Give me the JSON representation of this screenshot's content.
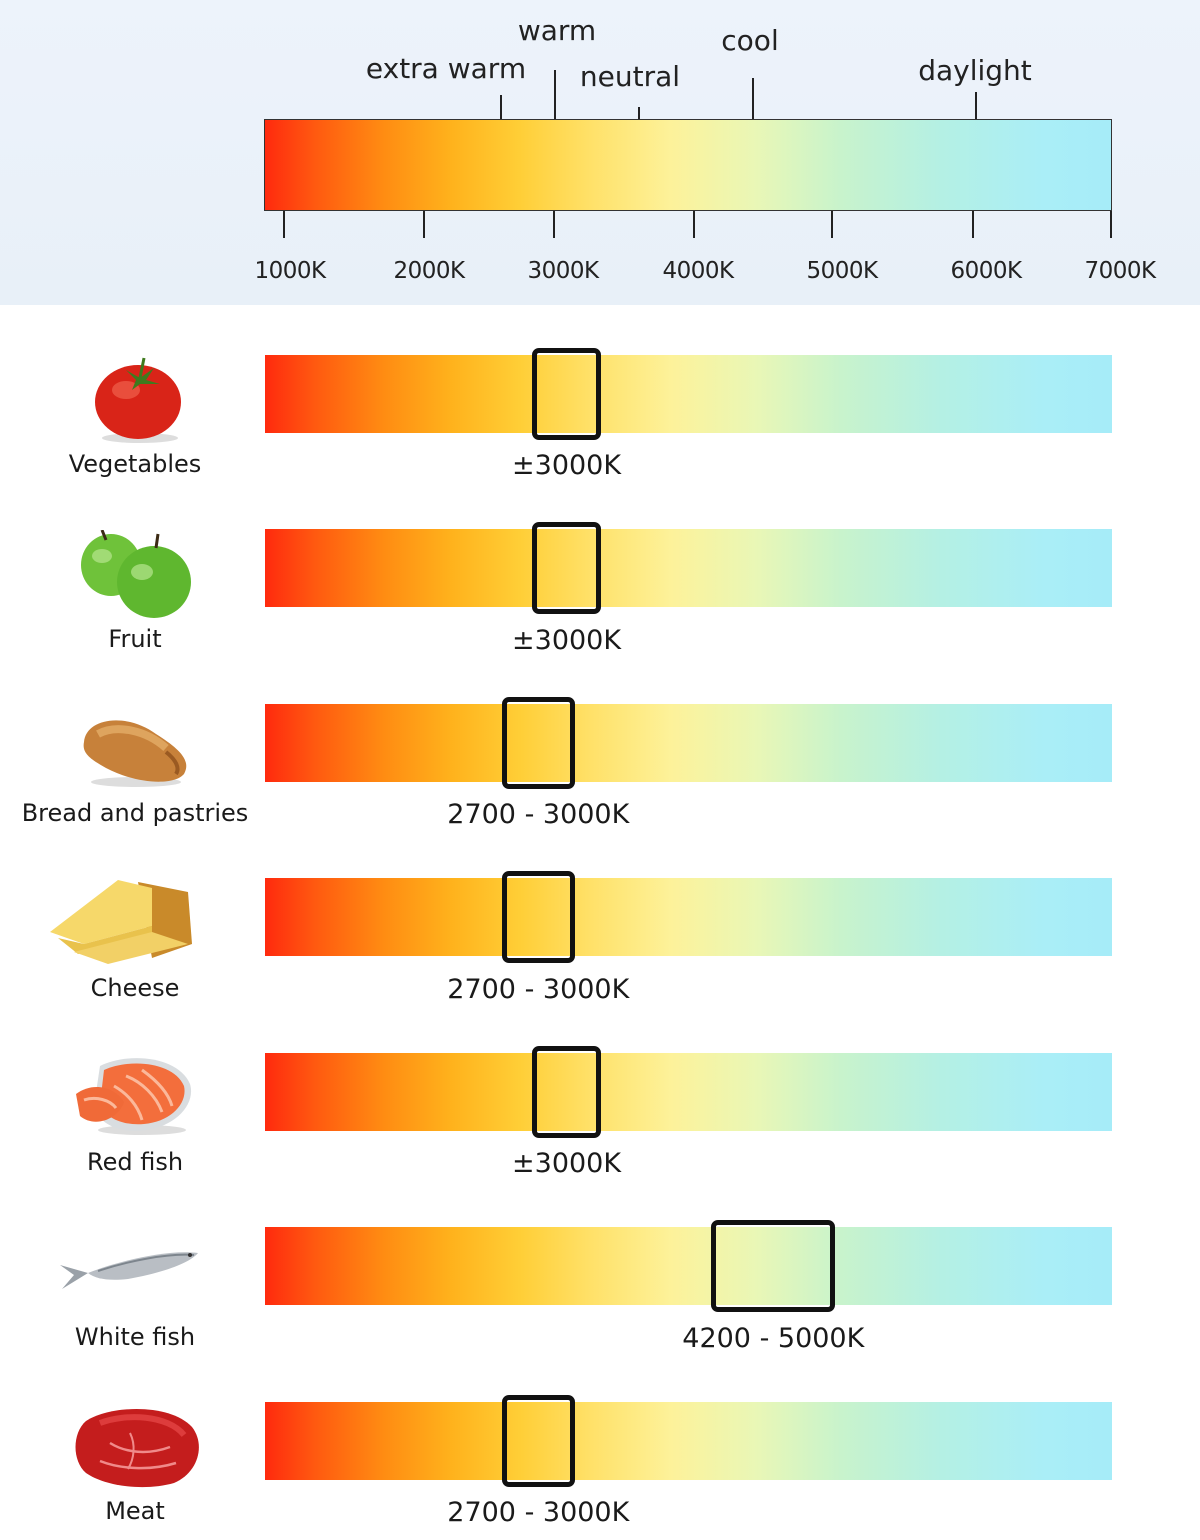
{
  "scale": {
    "ticks": [
      "1000K",
      "2000K",
      "3000K",
      "4000K",
      "5000K",
      "6000K",
      "7000K"
    ],
    "zones": {
      "extra_warm": "extra warm",
      "warm": "warm",
      "neutral": "neutral",
      "cool": "cool",
      "daylight": "daylight"
    }
  },
  "foods": [
    {
      "name": "Vegetables",
      "icon": "tomato-icon",
      "range": "±3000K",
      "kelvin_min": 2800,
      "kelvin_max": 3300
    },
    {
      "name": "Fruit",
      "icon": "apples-icon",
      "range": "±3000K",
      "kelvin_min": 2800,
      "kelvin_max": 3300
    },
    {
      "name": "Bread and pastries",
      "icon": "bread-icon",
      "range": "2700 - 3000K",
      "kelvin_min": 2580,
      "kelvin_max": 3110
    },
    {
      "name": "Cheese",
      "icon": "cheese-icon",
      "range": "2700 - 3000K",
      "kelvin_min": 2580,
      "kelvin_max": 3110
    },
    {
      "name": "Red fish",
      "icon": "salmon-icon",
      "range": "±3000K",
      "kelvin_min": 2800,
      "kelvin_max": 3300
    },
    {
      "name": "White fish",
      "icon": "fish-icon",
      "range": "4200 - 5000K",
      "kelvin_min": 4100,
      "kelvin_max": 5000
    },
    {
      "name": "Meat",
      "icon": "steak-icon",
      "range": "2700 - 3000K",
      "kelvin_min": 2580,
      "kelvin_max": 3110
    }
  ],
  "colors": {
    "hot": "#ff2a0e",
    "warm": "#ffce36",
    "neutral": "#fdf29a",
    "cool": "#aaeef7",
    "marker_border": "#111111"
  }
}
